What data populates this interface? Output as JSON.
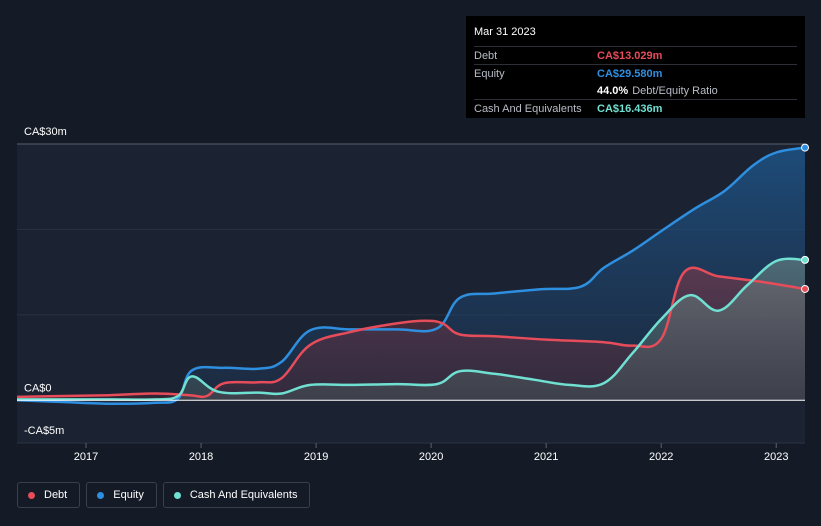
{
  "chart_data": {
    "type": "area",
    "ylim": [
      -5,
      30
    ],
    "xlim": [
      2016.4,
      2023.25
    ],
    "y_tick_labels": [
      {
        "value": 30,
        "label": "CA$30m"
      },
      {
        "value": 0,
        "label": "CA$0"
      },
      {
        "value": -5,
        "label": "-CA$5m"
      }
    ],
    "x_ticks": [
      2017,
      2018,
      2019,
      2020,
      2021,
      2022,
      2023
    ],
    "x_tick_labels": [
      "2017",
      "2018",
      "2019",
      "2020",
      "2021",
      "2022",
      "2023"
    ],
    "grid": true,
    "legend_position": "bottom-left",
    "series": [
      {
        "name": "Equity",
        "color": "#2e8fe0",
        "points": [
          [
            2016.4,
            0
          ],
          [
            2016.8,
            -0.2
          ],
          [
            2017.2,
            -0.4
          ],
          [
            2017.6,
            -0.3
          ],
          [
            2017.8,
            0.2
          ],
          [
            2017.92,
            3.5
          ],
          [
            2018.2,
            3.8
          ],
          [
            2018.5,
            3.7
          ],
          [
            2018.7,
            4.5
          ],
          [
            2018.95,
            8.2
          ],
          [
            2019.3,
            8.3
          ],
          [
            2019.7,
            8.3
          ],
          [
            2020.05,
            8.4
          ],
          [
            2020.25,
            12.0
          ],
          [
            2020.55,
            12.5
          ],
          [
            2020.95,
            13.0
          ],
          [
            2021.3,
            13.3
          ],
          [
            2021.5,
            15.5
          ],
          [
            2021.75,
            17.5
          ],
          [
            2022.0,
            19.8
          ],
          [
            2022.3,
            22.5
          ],
          [
            2022.55,
            24.5
          ],
          [
            2022.8,
            27.5
          ],
          [
            2023.0,
            29.0
          ],
          [
            2023.25,
            29.58
          ]
        ]
      },
      {
        "name": "Debt",
        "color": "#e64c5a",
        "points": [
          [
            2016.4,
            0.4
          ],
          [
            2016.8,
            0.5
          ],
          [
            2017.2,
            0.6
          ],
          [
            2017.6,
            0.8
          ],
          [
            2017.9,
            0.6
          ],
          [
            2018.05,
            0.5
          ],
          [
            2018.2,
            2.0
          ],
          [
            2018.5,
            2.1
          ],
          [
            2018.7,
            2.6
          ],
          [
            2018.95,
            6.5
          ],
          [
            2019.3,
            8.0
          ],
          [
            2019.7,
            9.0
          ],
          [
            2019.95,
            9.3
          ],
          [
            2020.1,
            9.0
          ],
          [
            2020.25,
            7.7
          ],
          [
            2020.55,
            7.5
          ],
          [
            2021.0,
            7.1
          ],
          [
            2021.5,
            6.8
          ],
          [
            2021.75,
            6.4
          ],
          [
            2022.0,
            7.2
          ],
          [
            2022.2,
            15.0
          ],
          [
            2022.5,
            14.5
          ],
          [
            2022.8,
            14.0
          ],
          [
            2023.0,
            13.6
          ],
          [
            2023.25,
            13.029
          ]
        ]
      },
      {
        "name": "Cash And Equivalents",
        "color": "#6fe0d2",
        "points": [
          [
            2016.4,
            0.1
          ],
          [
            2016.8,
            0.1
          ],
          [
            2017.2,
            0.1
          ],
          [
            2017.6,
            0.1
          ],
          [
            2017.8,
            0.5
          ],
          [
            2017.92,
            2.8
          ],
          [
            2018.15,
            1.0
          ],
          [
            2018.5,
            0.9
          ],
          [
            2018.7,
            0.8
          ],
          [
            2018.95,
            1.8
          ],
          [
            2019.3,
            1.8
          ],
          [
            2019.7,
            1.9
          ],
          [
            2020.05,
            1.9
          ],
          [
            2020.25,
            3.4
          ],
          [
            2020.55,
            3.1
          ],
          [
            2020.9,
            2.4
          ],
          [
            2021.2,
            1.8
          ],
          [
            2021.5,
            2.0
          ],
          [
            2021.75,
            5.5
          ],
          [
            2022.0,
            9.5
          ],
          [
            2022.25,
            12.3
          ],
          [
            2022.5,
            10.5
          ],
          [
            2022.75,
            13.5
          ],
          [
            2023.0,
            16.3
          ],
          [
            2023.25,
            16.436
          ]
        ]
      }
    ]
  },
  "tooltip": {
    "date": "Mar 31 2023",
    "rows": [
      {
        "key": "Debt",
        "value": "CA$13.029m",
        "color": "#e64c5a"
      },
      {
        "key": "Equity",
        "value": "CA$29.580m",
        "color": "#2e8fe0"
      },
      {
        "key": "",
        "value": "44.0%",
        "sub": "Debt/Equity Ratio",
        "color": "#ffffff"
      },
      {
        "key": "Cash And Equivalents",
        "value": "CA$16.436m",
        "color": "#6fe0d2"
      }
    ]
  },
  "legend": [
    {
      "label": "Debt",
      "color": "#e64c5a"
    },
    {
      "label": "Equity",
      "color": "#2e8fe0"
    },
    {
      "label": "Cash And Equivalents",
      "color": "#6fe0d2"
    }
  ]
}
